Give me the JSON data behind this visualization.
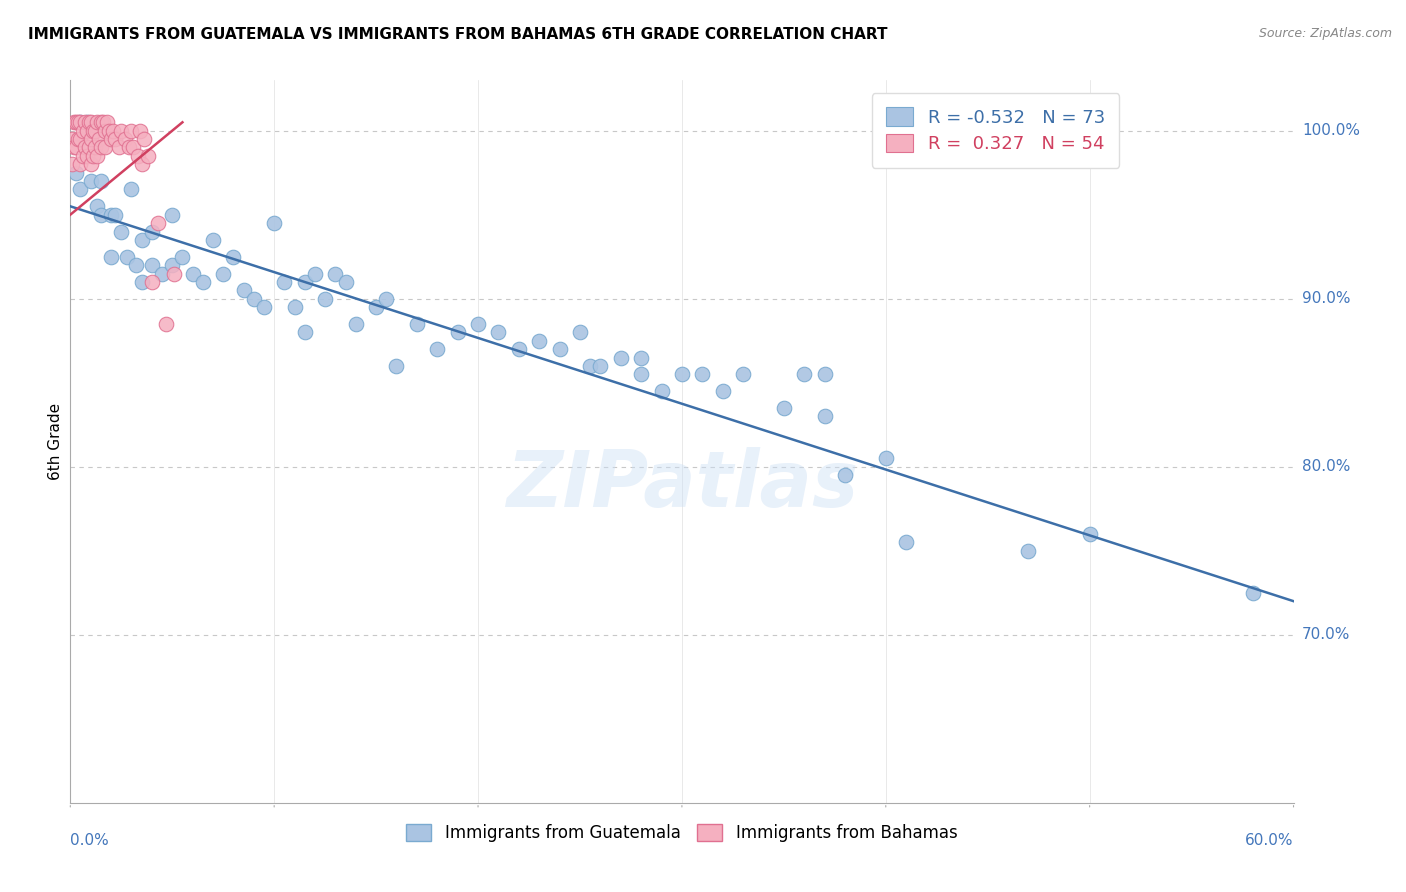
{
  "title": "IMMIGRANTS FROM GUATEMALA VS IMMIGRANTS FROM BAHAMAS 6TH GRADE CORRELATION CHART",
  "source": "Source: ZipAtlas.com",
  "ylabel": "6th Grade",
  "xlim": [
    0.0,
    60.0
  ],
  "ylim": [
    60.0,
    103.0
  ],
  "yticks": [
    70.0,
    80.0,
    90.0,
    100.0
  ],
  "blue_R": -0.532,
  "blue_N": 73,
  "pink_R": 0.327,
  "pink_N": 54,
  "blue_color": "#aac4e2",
  "pink_color": "#f5b0c0",
  "blue_edge_color": "#7aaad0",
  "pink_edge_color": "#e07090",
  "blue_line_color": "#3d6fa8",
  "pink_line_color": "#d04060",
  "tick_color": "#4477bb",
  "watermark": "ZIPatlas",
  "blue_line_x0": 0.0,
  "blue_line_y0": 95.5,
  "blue_line_x1": 60.0,
  "blue_line_y1": 72.0,
  "pink_line_x0": 0.0,
  "pink_line_y0": 95.0,
  "pink_line_x1": 5.5,
  "pink_line_y1": 100.5,
  "blue_scatter_x": [
    0.3,
    0.5,
    0.5,
    0.8,
    1.0,
    1.3,
    1.5,
    1.5,
    2.0,
    2.0,
    2.2,
    2.5,
    2.8,
    3.0,
    3.2,
    3.5,
    3.5,
    4.0,
    4.0,
    4.5,
    5.0,
    5.0,
    5.5,
    6.0,
    6.5,
    7.0,
    7.5,
    8.0,
    8.5,
    9.0,
    9.5,
    10.0,
    10.5,
    11.0,
    11.5,
    11.5,
    12.0,
    12.5,
    13.0,
    13.5,
    14.0,
    15.0,
    15.5,
    16.0,
    17.0,
    18.0,
    19.0,
    20.0,
    21.0,
    22.0,
    23.0,
    24.0,
    25.0,
    25.5,
    26.0,
    27.0,
    28.0,
    28.0,
    29.0,
    30.0,
    31.0,
    32.0,
    33.0,
    35.0,
    36.0,
    37.0,
    37.0,
    38.0,
    40.0,
    41.0,
    47.0,
    50.0,
    58.0
  ],
  "blue_scatter_y": [
    97.5,
    100.5,
    96.5,
    100.5,
    97.0,
    95.5,
    97.0,
    95.0,
    95.0,
    92.5,
    95.0,
    94.0,
    92.5,
    96.5,
    92.0,
    93.5,
    91.0,
    94.0,
    92.0,
    91.5,
    95.0,
    92.0,
    92.5,
    91.5,
    91.0,
    93.5,
    91.5,
    92.5,
    90.5,
    90.0,
    89.5,
    94.5,
    91.0,
    89.5,
    91.0,
    88.0,
    91.5,
    90.0,
    91.5,
    91.0,
    88.5,
    89.5,
    90.0,
    86.0,
    88.5,
    87.0,
    88.0,
    88.5,
    88.0,
    87.0,
    87.5,
    87.0,
    88.0,
    86.0,
    86.0,
    86.5,
    86.5,
    85.5,
    84.5,
    85.5,
    85.5,
    84.5,
    85.5,
    83.5,
    85.5,
    83.0,
    85.5,
    79.5,
    80.5,
    75.5,
    75.0,
    76.0,
    72.5
  ],
  "pink_scatter_x": [
    0.1,
    0.1,
    0.2,
    0.2,
    0.3,
    0.3,
    0.4,
    0.4,
    0.5,
    0.5,
    0.5,
    0.6,
    0.6,
    0.7,
    0.7,
    0.8,
    0.8,
    0.9,
    0.9,
    1.0,
    1.0,
    1.0,
    1.1,
    1.1,
    1.2,
    1.2,
    1.3,
    1.3,
    1.4,
    1.5,
    1.5,
    1.6,
    1.7,
    1.7,
    1.8,
    1.9,
    2.0,
    2.1,
    2.2,
    2.4,
    2.5,
    2.7,
    2.9,
    3.0,
    3.1,
    3.3,
    3.4,
    3.5,
    3.6,
    3.8,
    4.0,
    4.3,
    4.7,
    5.1
  ],
  "pink_scatter_y": [
    99.5,
    98.0,
    100.5,
    99.0,
    100.5,
    99.0,
    100.5,
    99.5,
    100.5,
    99.5,
    98.0,
    100.0,
    98.5,
    100.5,
    99.0,
    100.0,
    98.5,
    100.5,
    99.0,
    100.5,
    99.5,
    98.0,
    100.0,
    98.5,
    100.0,
    99.0,
    100.5,
    98.5,
    99.5,
    100.5,
    99.0,
    100.5,
    100.0,
    99.0,
    100.5,
    100.0,
    99.5,
    100.0,
    99.5,
    99.0,
    100.0,
    99.5,
    99.0,
    100.0,
    99.0,
    98.5,
    100.0,
    98.0,
    99.5,
    98.5,
    91.0,
    94.5,
    88.5,
    91.5
  ]
}
